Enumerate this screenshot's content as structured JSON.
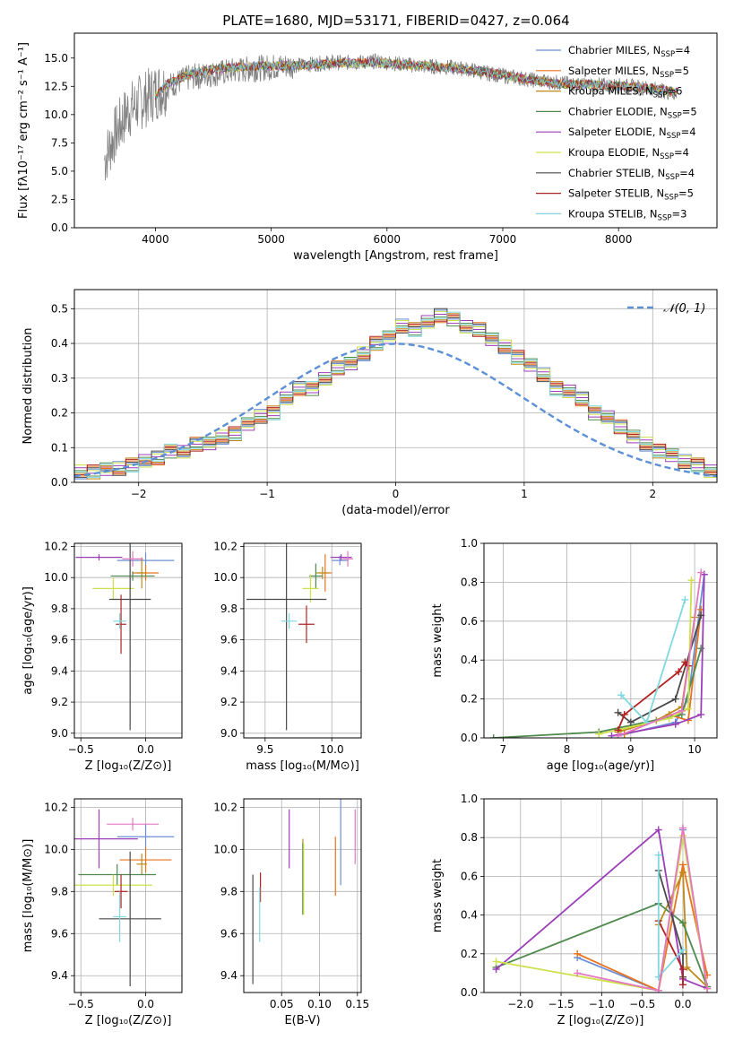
{
  "figure": {
    "title": "PLATE=1680, MJD=53171, FIBERID=0427, z=0.064"
  },
  "chart_data": [
    {
      "id": "spectrum",
      "type": "line",
      "xlabel": "wavelength [Angstrom, rest frame]",
      "ylabel": "Flux [fλ10⁻¹⁷ erg cm⁻² s⁻¹ A⁻¹]",
      "xlim": [
        3300,
        8850
      ],
      "ylim": [
        0,
        17.2
      ],
      "xticks": [
        4000,
        5000,
        6000,
        7000,
        8000
      ],
      "yticks": [
        0.0,
        2.5,
        5.0,
        7.5,
        10.0,
        12.5,
        15.0
      ],
      "grid": false,
      "legend_position": "top-right",
      "data_x": [
        3560,
        3640,
        3760,
        3900,
        4000,
        4100,
        4300,
        4500,
        4700,
        4900,
        5100,
        5300,
        5500,
        5700,
        5900,
        6100,
        6300,
        6500,
        6700,
        6900,
        7100,
        7300,
        7500,
        7700,
        7900,
        8100,
        8300,
        8500
      ],
      "data_y": [
        6.0,
        8.0,
        10.3,
        11.3,
        12.0,
        12.5,
        13.3,
        13.6,
        13.9,
        14.1,
        14.3,
        14.4,
        14.6,
        14.6,
        14.7,
        14.5,
        14.3,
        14.2,
        14.0,
        13.6,
        13.3,
        13.0,
        12.8,
        12.6,
        12.6,
        12.5,
        12.3,
        11.8
      ],
      "model_x": [
        4000,
        4100,
        4300,
        4500,
        4700,
        4900,
        5100,
        5300,
        5500,
        5700,
        5900,
        6100,
        6300,
        6500,
        6700,
        6900,
        7100,
        7300,
        7500,
        7700,
        7900,
        8100,
        8300,
        8500
      ],
      "model_y": [
        11.6,
        12.7,
        13.6,
        14.0,
        14.2,
        14.3,
        14.3,
        14.4,
        14.5,
        14.6,
        14.6,
        14.5,
        14.3,
        14.2,
        14.0,
        13.7,
        13.3,
        13.0,
        12.7,
        12.7,
        12.6,
        12.5,
        12.3,
        12.0
      ],
      "series": [
        {
          "name": "Chabrier MILES, N_SSP=4",
          "label_main": "Chabrier MILES, N",
          "label_sub": "SSP",
          "label_tail": "=4",
          "color": "#6b8fd6"
        },
        {
          "name": "Salpeter MILES, N_SSP=5",
          "label_main": "Salpeter MILES, N",
          "label_sub": "SSP",
          "label_tail": "=5",
          "color": "#e8731f"
        },
        {
          "name": "Kroupa MILES, N_SSP=6",
          "label_main": "Kroupa MILES, N",
          "label_sub": "SSP",
          "label_tail": "=6",
          "color": "#c08a18"
        },
        {
          "name": "Chabrier ELODIE, N_SSP=5",
          "label_main": "Chabrier ELODIE, N",
          "label_sub": "SSP",
          "label_tail": "=5",
          "color": "#4f8a4f"
        },
        {
          "name": "Salpeter ELODIE, N_SSP=4",
          "label_main": "Salpeter ELODIE, N",
          "label_sub": "SSP",
          "label_tail": "=4",
          "color": "#9b3fb8"
        },
        {
          "name": "Kroupa ELODIE, N_SSP=4",
          "label_main": "Kroupa ELODIE, N",
          "label_sub": "SSP",
          "label_tail": "=4",
          "color": "#cde04a"
        },
        {
          "name": "Chabrier STELIB, N_SSP=4",
          "label_main": "Chabrier STELIB, N",
          "label_sub": "SSP",
          "label_tail": "=4",
          "color": "#4a4a4a"
        },
        {
          "name": "Salpeter STELIB, N_SSP=5",
          "label_main": "Salpeter STELIB, N",
          "label_sub": "SSP",
          "label_tail": "=5",
          "color": "#b22222"
        },
        {
          "name": "Kroupa STELIB, N_SSP=3",
          "label_main": "Kroupa STELIB, N",
          "label_sub": "SSP",
          "label_tail": "=3",
          "color": "#7fd8e0"
        }
      ]
    },
    {
      "id": "residuals",
      "type": "histogram",
      "xlabel": "(data-model)/error",
      "ylabel": "Normed distribution",
      "xlim": [
        -2.5,
        2.5
      ],
      "ylim": [
        0,
        0.555
      ],
      "xticks": [
        -2,
        -1,
        0,
        1,
        2
      ],
      "yticks": [
        0.0,
        0.1,
        0.2,
        0.3,
        0.4,
        0.5
      ],
      "grid": true,
      "legend_position": "top-right",
      "legend_label": "𝒩(0, 1)",
      "bin_edges_start": -2.5,
      "bin_width": 0.1,
      "heights": [
        0.03,
        0.03,
        0.04,
        0.04,
        0.05,
        0.06,
        0.07,
        0.09,
        0.09,
        0.11,
        0.11,
        0.13,
        0.14,
        0.17,
        0.19,
        0.2,
        0.24,
        0.27,
        0.27,
        0.3,
        0.33,
        0.34,
        0.37,
        0.4,
        0.42,
        0.45,
        0.44,
        0.46,
        0.48,
        0.47,
        0.45,
        0.44,
        0.41,
        0.39,
        0.36,
        0.34,
        0.31,
        0.27,
        0.26,
        0.24,
        0.2,
        0.19,
        0.16,
        0.13,
        0.11,
        0.09,
        0.08,
        0.06,
        0.05,
        0.03
      ],
      "normal_curve": true
    },
    {
      "id": "age-vs-Z",
      "type": "errorbar",
      "xlabel": "Z [log₁₀(Z/Z⊙)]",
      "ylabel": "age  [log₁₀(age/yr)]",
      "xlim": [
        -0.55,
        0.28
      ],
      "ylim": [
        8.97,
        10.22
      ],
      "xticks": [
        -0.5,
        0.0
      ],
      "yticks": [
        9.0,
        9.2,
        9.4,
        9.6,
        9.8,
        10.0,
        10.2
      ],
      "grid": true,
      "points": [
        {
          "x": 0.0,
          "y": 10.11,
          "xerr": 0.22,
          "yerr": 0.05,
          "color": "#6b8fd6"
        },
        {
          "x": 0.0,
          "y": 10.03,
          "xerr": 0.1,
          "yerr": 0.05,
          "color": "#e8731f"
        },
        {
          "x": -0.03,
          "y": 10.03,
          "xerr": 0.04,
          "yerr": 0.1,
          "color": "#c08a18"
        },
        {
          "x": -0.1,
          "y": 10.01,
          "xerr": 0.17,
          "yerr": 0.03,
          "color": "#4f8a4f"
        },
        {
          "x": -0.36,
          "y": 10.13,
          "xerr": 0.18,
          "yerr": 0.02,
          "color": "#9b3fb8"
        },
        {
          "x": -0.25,
          "y": 9.93,
          "xerr": 0.16,
          "yerr": 0.07,
          "color": "#cde04a"
        },
        {
          "x": -0.12,
          "y": 9.86,
          "xerr": 0.16,
          "yerr": 0.84,
          "color": "#4a4a4a"
        },
        {
          "x": -0.19,
          "y": 9.7,
          "xerr": 0.04,
          "yerr": 0.19,
          "color": "#b22222"
        },
        {
          "x": -0.2,
          "y": 9.72,
          "xerr": 0.05,
          "yerr": 0.05,
          "color": "#7fd8e0"
        },
        {
          "x": -0.1,
          "y": 10.12,
          "xerr": 0.08,
          "yerr": 0.05,
          "color": "#e377c2"
        }
      ]
    },
    {
      "id": "age-vs-mass",
      "type": "errorbar",
      "xlabel": "mass [log₁₀(M/M⊙)]",
      "ylabel": "",
      "xlim": [
        9.34,
        10.22
      ],
      "ylim": [
        8.97,
        10.22
      ],
      "xticks": [
        9.5,
        10.0
      ],
      "yticks": [
        9.0,
        9.2,
        9.4,
        9.6,
        9.8,
        10.0,
        10.2
      ],
      "grid": true,
      "points": [
        {
          "x": 10.06,
          "y": 10.11,
          "xerr": 0.06,
          "yerr": 0.03,
          "color": "#6b8fd6"
        },
        {
          "x": 9.95,
          "y": 10.03,
          "xerr": 0.05,
          "yerr": 0.12,
          "color": "#e8731f"
        },
        {
          "x": 9.93,
          "y": 10.03,
          "xerr": 0.05,
          "yerr": 0.04,
          "color": "#c08a18"
        },
        {
          "x": 9.88,
          "y": 10.01,
          "xerr": 0.05,
          "yerr": 0.08,
          "color": "#4f8a4f"
        },
        {
          "x": 10.07,
          "y": 10.13,
          "xerr": 0.08,
          "yerr": 0.02,
          "color": "#9b3fb8"
        },
        {
          "x": 9.84,
          "y": 9.93,
          "xerr": 0.06,
          "yerr": 0.09,
          "color": "#cde04a"
        },
        {
          "x": 9.66,
          "y": 9.86,
          "xerr": 0.3,
          "yerr": 0.84,
          "color": "#4a4a4a"
        },
        {
          "x": 9.81,
          "y": 9.7,
          "xerr": 0.06,
          "yerr": 0.12,
          "color": "#b22222"
        },
        {
          "x": 9.68,
          "y": 9.72,
          "xerr": 0.06,
          "yerr": 0.05,
          "color": "#7fd8e0"
        },
        {
          "x": 10.12,
          "y": 10.12,
          "xerr": 0.04,
          "yerr": 0.05,
          "color": "#e377c2"
        }
      ]
    },
    {
      "id": "massweight-vs-age",
      "type": "line",
      "xlabel": "age  [log₁₀(age/yr)]",
      "ylabel": "mass weight",
      "xlim": [
        6.7,
        10.35
      ],
      "ylim": [
        0,
        1.0
      ],
      "xticks": [
        7,
        8,
        9,
        10
      ],
      "yticks": [
        0.0,
        0.2,
        0.4,
        0.6,
        0.8,
        1.0
      ],
      "grid": true,
      "series": [
        {
          "color": "#6b8fd6",
          "x": [
            8.8,
            9.7,
            9.9,
            10.15
          ],
          "y": [
            0.01,
            0.08,
            0.2,
            0.84
          ]
        },
        {
          "color": "#e8731f",
          "x": [
            8.9,
            9.6,
            9.9,
            10.1
          ],
          "y": [
            0.02,
            0.12,
            0.09,
            0.66
          ]
        },
        {
          "color": "#c08a18",
          "x": [
            8.8,
            9.4,
            9.8,
            10.0
          ],
          "y": [
            0.03,
            0.09,
            0.16,
            0.62
          ]
        },
        {
          "color": "#4f8a4f",
          "x": [
            6.85,
            8.5,
            9.8,
            10.1
          ],
          "y": [
            0.0,
            0.03,
            0.12,
            0.46
          ]
        },
        {
          "color": "#9b3fb8",
          "x": [
            8.7,
            9.7,
            10.1,
            10.15
          ],
          "y": [
            0.01,
            0.07,
            0.12,
            0.84
          ]
        },
        {
          "color": "#cde04a",
          "x": [
            8.5,
            9.6,
            9.9,
            9.95
          ],
          "y": [
            0.02,
            0.1,
            0.15,
            0.81
          ]
        },
        {
          "color": "#4a4a4a",
          "x": [
            8.8,
            9.0,
            9.7,
            10.1
          ],
          "y": [
            0.13,
            0.08,
            0.2,
            0.63
          ]
        },
        {
          "color": "#b22222",
          "x": [
            8.8,
            8.9,
            9.75,
            9.85,
            9.9
          ],
          "y": [
            0.04,
            0.12,
            0.34,
            0.39,
            0.37
          ]
        },
        {
          "color": "#7fd8e0",
          "x": [
            8.85,
            9.25,
            9.85
          ],
          "y": [
            0.22,
            0.08,
            0.71
          ]
        },
        {
          "color": "#e377c2",
          "x": [
            8.8,
            9.8,
            10.1
          ],
          "y": [
            0.01,
            0.14,
            0.85
          ]
        }
      ]
    },
    {
      "id": "mass-vs-Z",
      "type": "errorbar",
      "xlabel": "Z [log₁₀(Z/Z⊙)]",
      "ylabel": "mass [log₁₀(M/M⊙)]",
      "xlim": [
        -0.55,
        0.28
      ],
      "ylim": [
        9.32,
        10.24
      ],
      "xticks": [
        -0.5,
        0.0
      ],
      "yticks": [
        9.4,
        9.6,
        9.8,
        10.0,
        10.2
      ],
      "grid": true,
      "points": [
        {
          "x": 0.0,
          "y": 10.06,
          "xerr": 0.22,
          "yerr": 0.06,
          "color": "#6b8fd6"
        },
        {
          "x": 0.0,
          "y": 9.95,
          "xerr": 0.2,
          "yerr": 0.06,
          "color": "#e8731f"
        },
        {
          "x": -0.03,
          "y": 9.93,
          "xerr": 0.04,
          "yerr": 0.05,
          "color": "#c08a18"
        },
        {
          "x": -0.22,
          "y": 9.88,
          "xerr": 0.3,
          "yerr": 0.05,
          "color": "#4f8a4f"
        },
        {
          "x": -0.36,
          "y": 10.05,
          "xerr": 0.3,
          "yerr": 0.14,
          "color": "#9b3fb8"
        },
        {
          "x": -0.25,
          "y": 9.83,
          "xerr": 0.3,
          "yerr": 0.05,
          "color": "#cde04a"
        },
        {
          "x": -0.12,
          "y": 9.67,
          "xerr": 0.24,
          "yerr": 0.32,
          "color": "#4a4a4a"
        },
        {
          "x": -0.19,
          "y": 9.8,
          "xerr": 0.05,
          "yerr": 0.08,
          "color": "#b22222"
        },
        {
          "x": -0.2,
          "y": 9.68,
          "xerr": 0.05,
          "yerr": 0.12,
          "color": "#7fd8e0"
        },
        {
          "x": -0.1,
          "y": 10.12,
          "xerr": 0.2,
          "yerr": 0.03,
          "color": "#e377c2"
        }
      ]
    },
    {
      "id": "mass-vs-EBV",
      "type": "errorbar",
      "xlabel": "E(B-V)",
      "ylabel": "",
      "xlim": [
        0.0,
        0.155
      ],
      "ylim": [
        9.32,
        10.24
      ],
      "xticks": [
        0.05,
        0.1,
        0.15
      ],
      "yticks": [
        9.4,
        9.6,
        9.8,
        10.0,
        10.2
      ],
      "grid": true,
      "points": [
        {
          "x": 0.128,
          "y": 10.06,
          "xerr": 0.0,
          "yerr": 0.23,
          "color": "#6b8fd6"
        },
        {
          "x": 0.121,
          "y": 9.92,
          "xerr": 0.0,
          "yerr": 0.14,
          "color": "#e8731f"
        },
        {
          "x": 0.078,
          "y": 9.87,
          "xerr": 0.0,
          "yerr": 0.18,
          "color": "#c08a18"
        },
        {
          "x": 0.078,
          "y": 9.86,
          "xerr": 0.0,
          "yerr": 0.17,
          "color": "#4f8a4f"
        },
        {
          "x": 0.06,
          "y": 10.05,
          "xerr": 0.0,
          "yerr": 0.14,
          "color": "#9b3fb8"
        },
        {
          "x": 0.079,
          "y": 9.86,
          "xerr": 0.0,
          "yerr": 0.17,
          "color": "#cde04a"
        },
        {
          "x": 0.012,
          "y": 9.62,
          "xerr": 0.0,
          "yerr": 0.26,
          "color": "#4a4a4a"
        },
        {
          "x": 0.022,
          "y": 9.82,
          "xerr": 0.0,
          "yerr": 0.07,
          "color": "#b22222"
        },
        {
          "x": 0.021,
          "y": 9.69,
          "xerr": 0.0,
          "yerr": 0.13,
          "color": "#7fd8e0"
        },
        {
          "x": 0.147,
          "y": 10.06,
          "xerr": 0.0,
          "yerr": 0.13,
          "color": "#e377c2"
        }
      ]
    },
    {
      "id": "massweight-vs-Z",
      "type": "line",
      "xlabel": "Z [log₁₀(Z/Z⊙)]",
      "ylabel": "mass weight",
      "xlim": [
        -2.45,
        0.42
      ],
      "ylim": [
        0,
        1.0
      ],
      "xticks": [
        -2.0,
        -1.5,
        -1.0,
        -0.5,
        0.0
      ],
      "yticks": [
        0.0,
        0.2,
        0.4,
        0.6,
        0.8,
        1.0
      ],
      "grid": true,
      "series": [
        {
          "color": "#6b8fd6",
          "x": [
            -1.3,
            -0.3,
            0.0,
            0.3
          ],
          "y": [
            0.18,
            0.01,
            0.84,
            0.02
          ]
        },
        {
          "color": "#e8731f",
          "x": [
            -1.3,
            -0.3,
            0.0,
            0.3
          ],
          "y": [
            0.2,
            0.01,
            0.66,
            0.09
          ]
        },
        {
          "color": "#c08a18",
          "x": [
            -0.3,
            0.0,
            0.05,
            0.3
          ],
          "y": [
            0.35,
            0.62,
            0.13,
            0.03
          ]
        },
        {
          "color": "#4f8a4f",
          "x": [
            -2.3,
            -0.3,
            0.0,
            0.3
          ],
          "y": [
            0.13,
            0.46,
            0.36,
            0.03
          ]
        },
        {
          "color": "#9b3fb8",
          "x": [
            -2.3,
            -0.3,
            0.0,
            0.3
          ],
          "y": [
            0.12,
            0.84,
            0.07,
            0.02
          ]
        },
        {
          "color": "#cde04a",
          "x": [
            -2.3,
            -0.3,
            0.0,
            0.3
          ],
          "y": [
            0.16,
            0.01,
            0.81,
            0.02
          ]
        },
        {
          "color": "#4a4a4a",
          "x": [
            -0.3,
            0.0,
            0.0
          ],
          "y": [
            0.63,
            0.2,
            0.08
          ]
        },
        {
          "color": "#b22222",
          "x": [
            -0.3,
            0.0,
            0.0
          ],
          "y": [
            0.37,
            0.12,
            0.04
          ]
        },
        {
          "color": "#7fd8e0",
          "x": [
            -0.3,
            -0.3,
            0.0
          ],
          "y": [
            0.71,
            0.08,
            0.22
          ]
        },
        {
          "color": "#e377c2",
          "x": [
            -1.3,
            -0.3,
            0.0,
            0.3
          ],
          "y": [
            0.1,
            0.01,
            0.85,
            0.02
          ]
        }
      ]
    }
  ]
}
